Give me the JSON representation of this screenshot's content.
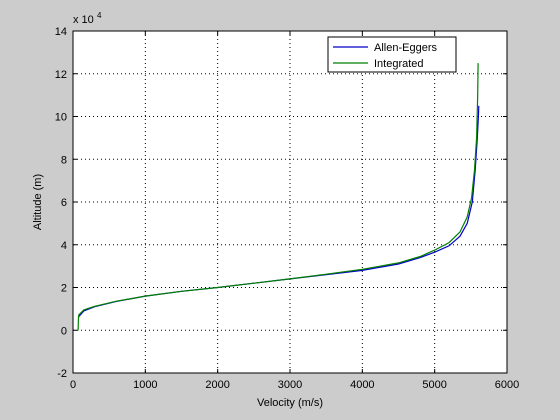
{
  "chart_data": {
    "type": "line",
    "title": "",
    "xlabel": "Velocity (m/s)",
    "ylabel": "Altitude (m)",
    "y_multiplier_label": "x 10",
    "y_multiplier_exponent": "4",
    "xlim": [
      0,
      6000
    ],
    "ylim": [
      -2,
      14
    ],
    "x_ticks": [
      0,
      1000,
      2000,
      3000,
      4000,
      5000,
      6000
    ],
    "y_ticks": [
      -2,
      0,
      2,
      4,
      6,
      8,
      10,
      12,
      14
    ],
    "grid": true,
    "legend_position": "top-right",
    "colors": {
      "background": "#cccccc",
      "plot_area": "#ffffff",
      "grid": "#000000"
    },
    "series": [
      {
        "name": "Allen-Eggers",
        "color": "#0000cc",
        "x": [
          70,
          150,
          300,
          600,
          1000,
          1500,
          2000,
          2500,
          3000,
          3500,
          4000,
          4500,
          4800,
          5000,
          5200,
          5350,
          5450,
          5520,
          5560,
          5590,
          5605,
          5610
        ],
        "y": [
          0.6,
          0.9,
          1.1,
          1.35,
          1.6,
          1.82,
          2.0,
          2.2,
          2.4,
          2.6,
          2.8,
          3.1,
          3.4,
          3.65,
          3.95,
          4.4,
          5.0,
          6.0,
          7.5,
          9.0,
          10.0,
          10.5
        ]
      },
      {
        "name": "Integrated",
        "color": "#007f00",
        "x": [
          70,
          75,
          80,
          150,
          300,
          600,
          1000,
          1500,
          2000,
          2500,
          3000,
          3500,
          4000,
          4500,
          4800,
          5000,
          5200,
          5350,
          5450,
          5510,
          5550,
          5580,
          5595,
          5600
        ],
        "y": [
          0.0,
          0.5,
          0.72,
          0.95,
          1.12,
          1.36,
          1.6,
          1.82,
          2.0,
          2.2,
          2.4,
          2.62,
          2.85,
          3.15,
          3.45,
          3.75,
          4.1,
          4.6,
          5.3,
          6.2,
          7.5,
          9.0,
          11.0,
          12.5
        ]
      }
    ]
  }
}
